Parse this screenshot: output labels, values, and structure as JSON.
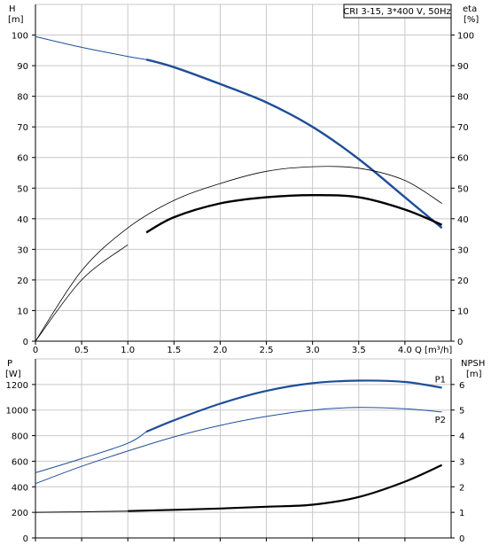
{
  "chart_data": [
    {
      "type": "line",
      "annotation": "CRI 3-15, 3*400 V, 50Hz",
      "x_axis": {
        "label": "Q [m³/h]",
        "range": [
          0,
          4.5
        ],
        "ticks": [
          0,
          0.5,
          1.0,
          1.5,
          2.0,
          2.5,
          3.0,
          3.5,
          4.0
        ],
        "tick_labels": [
          "0",
          "0.5",
          "1.0",
          "1.5",
          "2.0",
          "2.5",
          "3.0",
          "3.5",
          "4.0"
        ]
      },
      "y_left": {
        "label_top": "H",
        "label_unit": "[m]",
        "range": [
          0,
          110
        ],
        "ticks": [
          0,
          10,
          20,
          30,
          40,
          50,
          60,
          70,
          80,
          90,
          100
        ]
      },
      "y_right": {
        "label_top": "eta",
        "label_unit": "[%]",
        "range": [
          0,
          110
        ],
        "ticks": [
          0,
          10,
          20,
          30,
          40,
          50,
          60,
          70,
          80,
          90,
          100
        ]
      },
      "grid": true,
      "series": [
        {
          "role": "head_curve",
          "axis": "left",
          "color": "#1f4e99",
          "x": [
            0,
            0.5,
            1.0,
            1.2,
            1.5,
            2.0,
            2.5,
            3.0,
            3.5,
            4.0,
            4.4
          ],
          "y": [
            99.5,
            96,
            93,
            92,
            89.5,
            84,
            78,
            70,
            59.5,
            47,
            37
          ]
        },
        {
          "role": "eta_curve_thin",
          "axis": "right",
          "color": "#000000",
          "x": [
            0,
            0.5,
            1.0,
            1.5,
            2.0,
            2.5,
            3.0,
            3.5,
            4.0,
            4.4
          ],
          "y": [
            0,
            23,
            37,
            46,
            51.5,
            55.5,
            57,
            56.5,
            52.5,
            45
          ]
        },
        {
          "role": "eta_curve_thin_2",
          "axis": "right",
          "color": "#000000",
          "x": [
            0,
            0.5,
            1.0
          ],
          "y": [
            0,
            20,
            31.5
          ]
        },
        {
          "role": "eta_curve_bold",
          "axis": "right",
          "color": "#000000",
          "x": [
            1.2,
            1.5,
            2.0,
            2.5,
            3.0,
            3.5,
            4.0,
            4.4
          ],
          "y": [
            35.5,
            40.5,
            45,
            47,
            47.7,
            47,
            43,
            38
          ]
        }
      ]
    },
    {
      "type": "line",
      "x_axis": {
        "range": [
          0,
          4.5
        ],
        "ticks": [
          0,
          0.5,
          1.0,
          1.5,
          2.0,
          2.5,
          3.0,
          3.5,
          4.0
        ]
      },
      "y_left": {
        "label_top": "P",
        "label_unit": "[W]",
        "range": [
          0,
          1400
        ],
        "ticks": [
          0,
          200,
          400,
          600,
          800,
          1000,
          1200
        ]
      },
      "y_right": {
        "label_top": "NPSH",
        "label_unit": "[m]",
        "range": [
          0,
          7
        ],
        "ticks": [
          0,
          1,
          2,
          3,
          4,
          5,
          6
        ]
      },
      "grid": true,
      "series": [
        {
          "name": "P1",
          "axis": "left",
          "color": "#1f4e99",
          "x": [
            0,
            0.5,
            1.0,
            1.2,
            1.5,
            2.0,
            2.5,
            3.0,
            3.5,
            4.0,
            4.4
          ],
          "y": [
            510,
            620,
            740,
            830,
            920,
            1050,
            1150,
            1210,
            1230,
            1220,
            1175
          ]
        },
        {
          "name": "P2",
          "axis": "left",
          "color": "#1f4e99",
          "x": [
            0,
            0.5,
            1.0,
            1.5,
            2.0,
            2.5,
            3.0,
            3.5,
            4.0,
            4.4
          ],
          "y": [
            425,
            560,
            680,
            790,
            880,
            950,
            1000,
            1020,
            1010,
            985
          ]
        },
        {
          "role": "npsh_curve",
          "axis": "right",
          "color": "#000000",
          "x": [
            0,
            0.5,
            1.0,
            1.5,
            2.0,
            2.5,
            3.0,
            3.5,
            4.0,
            4.4
          ],
          "y": [
            1.0,
            1.02,
            1.05,
            1.1,
            1.15,
            1.22,
            1.3,
            1.6,
            2.2,
            2.85
          ]
        }
      ]
    }
  ]
}
